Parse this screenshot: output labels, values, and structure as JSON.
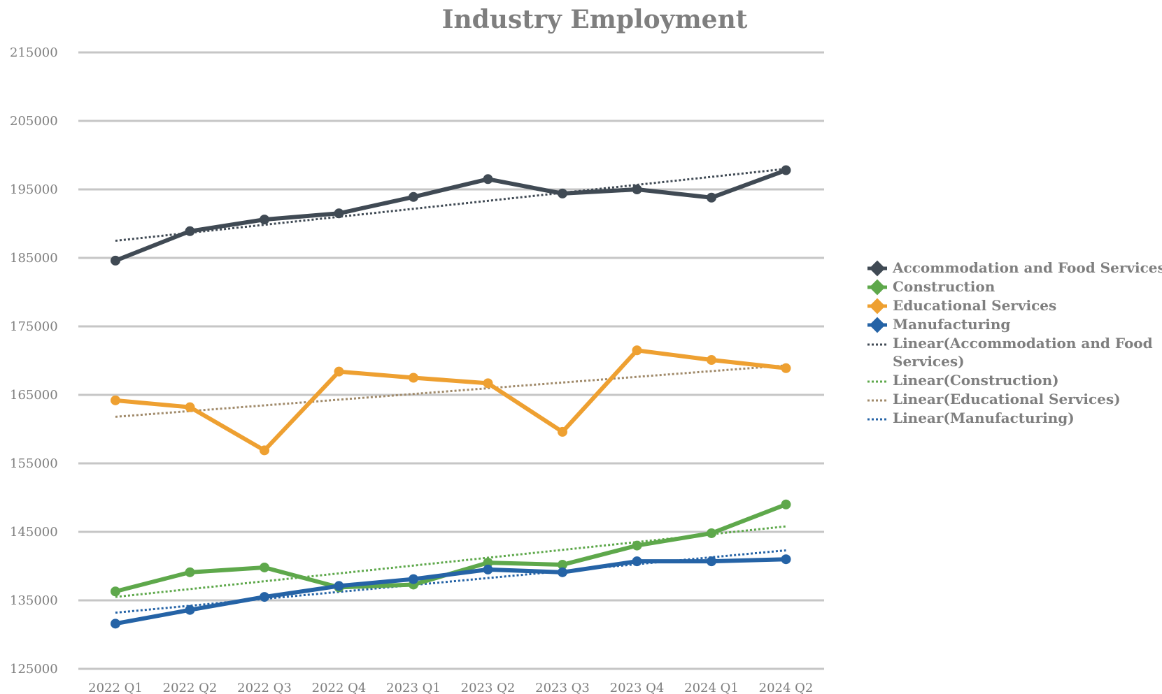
{
  "chart_data": {
    "type": "line",
    "title": "Industry Employment",
    "xlabel": "",
    "ylabel": "",
    "categories": [
      "2022 Q1",
      "2022 Q2",
      "2022 Q3",
      "2022 Q4",
      "2023 Q1",
      "2023 Q2",
      "2023 Q3",
      "2023 Q4",
      "2024 Q1",
      "2024 Q2"
    ],
    "ylim": [
      125000,
      215000
    ],
    "yticks": [
      "125000",
      "135000",
      "145000",
      "155000",
      "165000",
      "175000",
      "185000",
      "195000",
      "205000",
      "215000"
    ],
    "grid": true,
    "legend_position": "right",
    "series": [
      {
        "name": "Accommodation and Food Services",
        "color": "#404a54",
        "values": [
          184600,
          188900,
          190600,
          191500,
          193900,
          196500,
          194400,
          195000,
          193800,
          197800
        ]
      },
      {
        "name": "Construction",
        "color": "#5ea84b",
        "values": [
          136300,
          139100,
          139800,
          136900,
          137300,
          140500,
          140200,
          143000,
          144800,
          149000
        ]
      },
      {
        "name": "Educational Services",
        "color": "#eea031",
        "values": [
          164200,
          163200,
          156900,
          168400,
          167500,
          166700,
          159600,
          171500,
          170100,
          168900
        ]
      },
      {
        "name": "Manufacturing",
        "color": "#2563a6",
        "values": [
          131600,
          133600,
          135500,
          137100,
          138100,
          139500,
          139100,
          140700,
          140700,
          141000
        ]
      }
    ],
    "trendlines": [
      {
        "name": "Linear(Accommodation and Food Services)",
        "color": "#404a54",
        "start": 187500,
        "end": 198000
      },
      {
        "name": "Linear(Construction)",
        "color": "#5ea84b",
        "start": 135500,
        "end": 145800
      },
      {
        "name": "Linear(Educational Services)",
        "color": "#a08a6a",
        "start": 161800,
        "end": 169300
      },
      {
        "name": "Linear(Manufacturing)",
        "color": "#2563a6",
        "start": 133200,
        "end": 142300
      }
    ]
  }
}
